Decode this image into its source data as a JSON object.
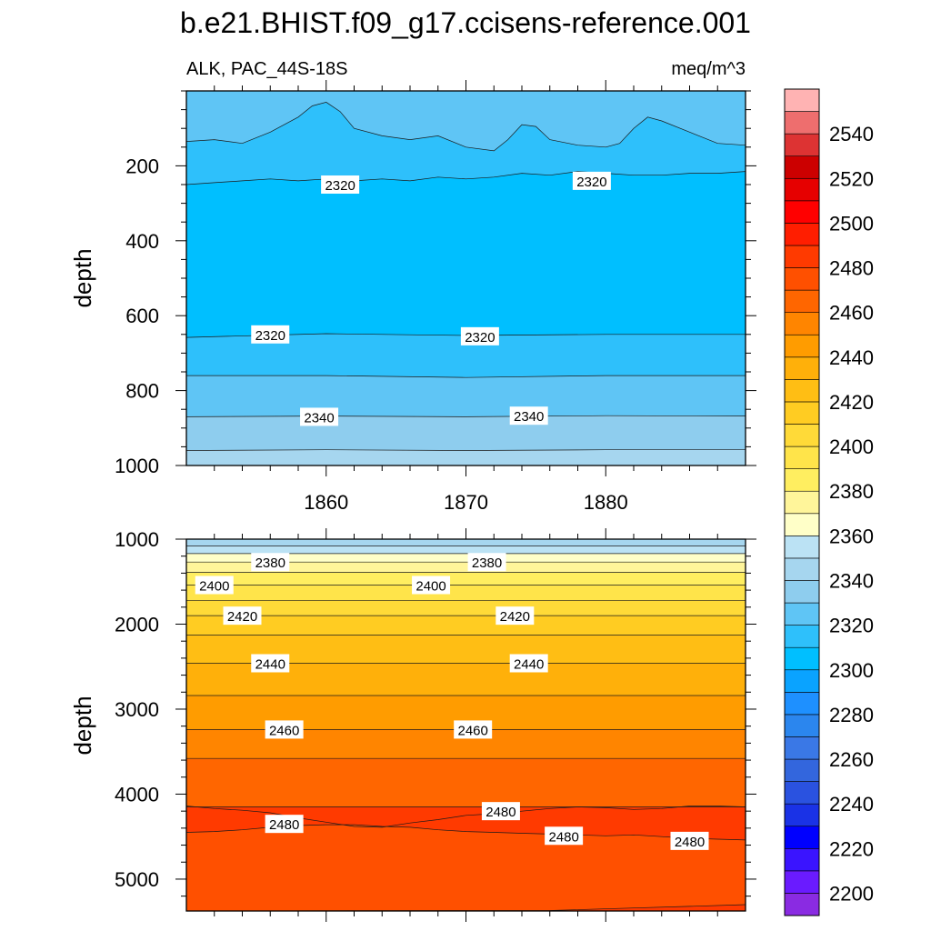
{
  "title": "b.e21.BHIST.f09_g17.ccisens-reference.001",
  "chart_data": [
    {
      "type": "contour",
      "panel": "upper",
      "left_label": "ALK, PAC_44S-18S",
      "right_label": "meq/m^3",
      "ylabel": "depth",
      "xlabel": "",
      "xlim": [
        1850,
        1890
      ],
      "ylim": [
        0,
        1000
      ],
      "y_inverted": true,
      "x_ticks": [
        1860,
        1870,
        1880
      ],
      "y_ticks": [
        200,
        400,
        600,
        800,
        1000
      ],
      "fill_bands": [
        {
          "from": 0,
          "to": 2330,
          "color": "#5fc5f5",
          "depth_profile": [
            [
              1850,
              0
            ],
            [
              1890,
              0
            ]
          ]
        },
        {
          "from": 2320,
          "to": 2330,
          "color": "#2ec0fb",
          "depth_profile": [
            [
              1850,
              135
            ],
            [
              1852,
              130
            ],
            [
              1854,
              140
            ],
            [
              1856,
              110
            ],
            [
              1858,
              70
            ],
            [
              1859,
              40
            ],
            [
              1860,
              30
            ],
            [
              1861,
              55
            ],
            [
              1862,
              100
            ],
            [
              1864,
              120
            ],
            [
              1866,
              130
            ],
            [
              1868,
              120
            ],
            [
              1870,
              150
            ],
            [
              1872,
              160
            ],
            [
              1873,
              130
            ],
            [
              1874,
              90
            ],
            [
              1875,
              95
            ],
            [
              1876,
              130
            ],
            [
              1878,
              145
            ],
            [
              1880,
              150
            ],
            [
              1881,
              140
            ],
            [
              1882,
              100
            ],
            [
              1883,
              70
            ],
            [
              1884,
              80
            ],
            [
              1886,
              110
            ],
            [
              1888,
              140
            ],
            [
              1890,
              145
            ]
          ]
        },
        {
          "from": 2310,
          "to": 2320,
          "color": "#00bfff",
          "depth_profile": [
            [
              1850,
              250
            ],
            [
              1852,
              245
            ],
            [
              1854,
              240
            ],
            [
              1856,
              235
            ],
            [
              1858,
              240
            ],
            [
              1860,
              235
            ],
            [
              1862,
              240
            ],
            [
              1864,
              235
            ],
            [
              1866,
              240
            ],
            [
              1868,
              230
            ],
            [
              1870,
              235
            ],
            [
              1872,
              230
            ],
            [
              1874,
              220
            ],
            [
              1876,
              225
            ],
            [
              1878,
              215
            ],
            [
              1880,
              220
            ],
            [
              1882,
              225
            ],
            [
              1884,
              225
            ],
            [
              1886,
              220
            ],
            [
              1888,
              220
            ],
            [
              1890,
              215
            ]
          ]
        },
        {
          "from": 2320,
          "to": 2330,
          "color": "#2ec0fb",
          "depth_profile": [
            [
              1850,
              658
            ],
            [
              1860,
              648
            ],
            [
              1870,
              653
            ],
            [
              1880,
              650
            ],
            [
              1890,
              650
            ]
          ]
        },
        {
          "from": 2330,
          "to": 2340,
          "color": "#5fc5f5",
          "depth_profile": [
            [
              1850,
              760
            ],
            [
              1860,
              760
            ],
            [
              1870,
              765
            ],
            [
              1880,
              760
            ],
            [
              1890,
              760
            ]
          ]
        },
        {
          "from": 2340,
          "to": 2350,
          "color": "#8ecdee",
          "depth_profile": [
            [
              1850,
              870
            ],
            [
              1860,
              868
            ],
            [
              1870,
              870
            ],
            [
              1880,
              867
            ],
            [
              1890,
              868
            ]
          ]
        },
        {
          "from": 2350,
          "to": 2360,
          "color": "#a6d6ef",
          "depth_profile": [
            [
              1850,
              960
            ],
            [
              1860,
              958
            ],
            [
              1870,
              960
            ],
            [
              1880,
              958
            ],
            [
              1890,
              958
            ]
          ]
        }
      ],
      "contour_labels": [
        {
          "text": "2320",
          "x": 1861,
          "y": 250
        },
        {
          "text": "2320",
          "x": 1879,
          "y": 240
        },
        {
          "text": "2320",
          "x": 1856,
          "y": 650
        },
        {
          "text": "2320",
          "x": 1871,
          "y": 655
        },
        {
          "text": "2340",
          "x": 1859.5,
          "y": 870
        },
        {
          "text": "2340",
          "x": 1874.5,
          "y": 867
        }
      ]
    },
    {
      "type": "contour",
      "panel": "lower",
      "ylabel": "depth",
      "xlabel": "",
      "xlim": [
        1850,
        1890
      ],
      "ylim": [
        1000,
        5375
      ],
      "y_inverted": true,
      "y_ticks": [
        1000,
        2000,
        3000,
        4000,
        5000
      ],
      "fill_bands": [
        {
          "from": 2350,
          "to": 2360,
          "color": "#a6d6ef",
          "depth_profile": [
            [
              1850,
              1000
            ],
            [
              1890,
              1000
            ]
          ]
        },
        {
          "from": 2360,
          "to": 2370,
          "color": "#bbe2f4",
          "depth_profile": [
            [
              1850,
              1080
            ],
            [
              1890,
              1080
            ]
          ]
        },
        {
          "from": 2370,
          "to": 2380,
          "color": "#ffffc8",
          "depth_profile": [
            [
              1850,
              1170
            ],
            [
              1890,
              1170
            ]
          ]
        },
        {
          "from": 2380,
          "to": 2390,
          "color": "#fff59a",
          "depth_profile": [
            [
              1850,
              1270
            ],
            [
              1890,
              1270
            ]
          ]
        },
        {
          "from": 2390,
          "to": 2400,
          "color": "#ffee60",
          "depth_profile": [
            [
              1850,
              1390
            ],
            [
              1890,
              1390
            ]
          ]
        },
        {
          "from": 2400,
          "to": 2410,
          "color": "#ffe44a",
          "depth_profile": [
            [
              1850,
              1540
            ],
            [
              1890,
              1540
            ]
          ]
        },
        {
          "from": 2410,
          "to": 2420,
          "color": "#ffda38",
          "depth_profile": [
            [
              1850,
              1720
            ],
            [
              1890,
              1720
            ]
          ]
        },
        {
          "from": 2420,
          "to": 2430,
          "color": "#ffcc22",
          "depth_profile": [
            [
              1850,
              1900
            ],
            [
              1890,
              1900
            ]
          ]
        },
        {
          "from": 2430,
          "to": 2440,
          "color": "#ffbe14",
          "depth_profile": [
            [
              1850,
              2130
            ],
            [
              1890,
              2130
            ]
          ]
        },
        {
          "from": 2440,
          "to": 2450,
          "color": "#ffb00a",
          "depth_profile": [
            [
              1850,
              2460
            ],
            [
              1890,
              2460
            ]
          ]
        },
        {
          "from": 2450,
          "to": 2460,
          "color": "#ff9c00",
          "depth_profile": [
            [
              1850,
              2840
            ],
            [
              1890,
              2840
            ]
          ]
        },
        {
          "from": 2460,
          "to": 2470,
          "color": "#ff8500",
          "depth_profile": [
            [
              1850,
              3240
            ],
            [
              1890,
              3240
            ]
          ]
        },
        {
          "from": 2470,
          "to": 2480,
          "color": "#ff6600",
          "depth_profile": [
            [
              1850,
              3580
            ],
            [
              1890,
              3580
            ]
          ]
        },
        {
          "from": 2480,
          "to": 2490,
          "color": "#ff5000",
          "depth_profile": [
            [
              1850,
              4140
            ],
            [
              1852,
              4170
            ],
            [
              1854,
              4190
            ],
            [
              1856,
              4220
            ],
            [
              1858,
              4280
            ],
            [
              1860,
              4330
            ],
            [
              1862,
              4380
            ],
            [
              1864,
              4390
            ],
            [
              1866,
              4340
            ],
            [
              1868,
              4300
            ],
            [
              1870,
              4250
            ],
            [
              1872,
              4230
            ],
            [
              1874,
              4200
            ],
            [
              1876,
              4170
            ],
            [
              1878,
              4150
            ],
            [
              1880,
              4160
            ],
            [
              1882,
              4180
            ],
            [
              1884,
              4170
            ],
            [
              1886,
              4140
            ],
            [
              1888,
              4140
            ],
            [
              1890,
              4150
            ]
          ]
        },
        {
          "from": 2490,
          "to": 2500,
          "color": "#ff3a00",
          "depth_profile": [
            [
              1850,
              4150
            ],
            [
              1890,
              4150
            ]
          ]
        },
        {
          "from": 2480,
          "to": 2490,
          "color": "#ff5000",
          "depth_profile": [
            [
              1850,
              4450
            ],
            [
              1852,
              4440
            ],
            [
              1854,
              4420
            ],
            [
              1856,
              4390
            ],
            [
              1858,
              4370
            ],
            [
              1860,
              4360
            ],
            [
              1862,
              4360
            ],
            [
              1864,
              4380
            ],
            [
              1866,
              4390
            ],
            [
              1868,
              4420
            ],
            [
              1870,
              4440
            ],
            [
              1872,
              4450
            ],
            [
              1874,
              4460
            ],
            [
              1876,
              4470
            ],
            [
              1878,
              4480
            ],
            [
              1880,
              4490
            ],
            [
              1882,
              4480
            ],
            [
              1884,
              4500
            ],
            [
              1886,
              4520
            ],
            [
              1888,
              4530
            ],
            [
              1890,
              4540
            ]
          ]
        },
        {
          "from": 2490,
          "to": 2500,
          "color": "#ff3a00",
          "depth_profile": [
            [
              1850,
              5375
            ],
            [
              1876,
              5370
            ],
            [
              1882,
              5340
            ],
            [
              1886,
              5320
            ],
            [
              1890,
              5300
            ]
          ]
        }
      ],
      "contour_labels": [
        {
          "text": "2380",
          "x": 1856,
          "y": 1270
        },
        {
          "text": "2380",
          "x": 1871.5,
          "y": 1270
        },
        {
          "text": "2400",
          "x": 1852,
          "y": 1540
        },
        {
          "text": "2400",
          "x": 1867.5,
          "y": 1540
        },
        {
          "text": "2420",
          "x": 1854,
          "y": 1900
        },
        {
          "text": "2420",
          "x": 1873.5,
          "y": 1900
        },
        {
          "text": "2440",
          "x": 1856,
          "y": 2460
        },
        {
          "text": "2440",
          "x": 1874.5,
          "y": 2460
        },
        {
          "text": "2460",
          "x": 1857,
          "y": 3240
        },
        {
          "text": "2460",
          "x": 1870.5,
          "y": 3240
        },
        {
          "text": "2480",
          "x": 1857,
          "y": 4350
        },
        {
          "text": "2480",
          "x": 1872.5,
          "y": 4200
        },
        {
          "text": "2480",
          "x": 1877,
          "y": 4490
        },
        {
          "text": "2480",
          "x": 1886,
          "y": 4550
        }
      ]
    }
  ],
  "colorbar": {
    "levels": [
      2200,
      2210,
      2220,
      2230,
      2240,
      2250,
      2260,
      2270,
      2280,
      2290,
      2300,
      2310,
      2320,
      2330,
      2340,
      2350,
      2360,
      2370,
      2380,
      2390,
      2400,
      2410,
      2420,
      2430,
      2440,
      2450,
      2460,
      2470,
      2480,
      2490,
      2500,
      2510,
      2520,
      2530,
      2540,
      2550
    ],
    "labels": [
      "2200",
      "2220",
      "2240",
      "2260",
      "2280",
      "2300",
      "2320",
      "2340",
      "2360",
      "2380",
      "2400",
      "2420",
      "2440",
      "2460",
      "2480",
      "2500",
      "2520",
      "2540"
    ],
    "colors": [
      "#8a2be2",
      "#6a1bff",
      "#3a14ff",
      "#0000ff",
      "#1a32e6",
      "#2a52e0",
      "#3366dd",
      "#3a78e6",
      "#2b86ee",
      "#1e90ff",
      "#0aa3ff",
      "#00bfff",
      "#2ec0fb",
      "#5fc5f5",
      "#8ecdee",
      "#a6d6ef",
      "#bbe2f4",
      "#ffffc8",
      "#fff59a",
      "#ffee60",
      "#ffe44a",
      "#ffda38",
      "#ffcc22",
      "#ffbe14",
      "#ffb00a",
      "#ff9c00",
      "#ff8500",
      "#ff6600",
      "#ff5000",
      "#ff3a00",
      "#ff1e00",
      "#ff0000",
      "#e60000",
      "#cc0000",
      "#dd3333",
      "#ee6e6e",
      "#ffb3b3"
    ]
  }
}
